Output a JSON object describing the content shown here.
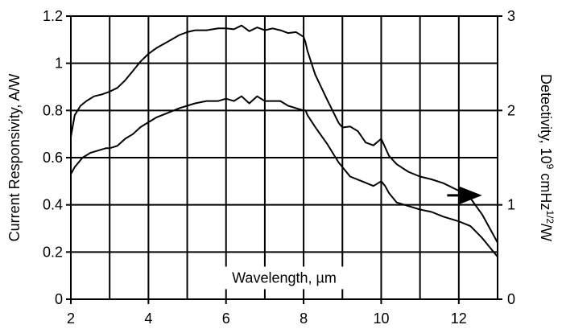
{
  "chart_data": {
    "type": "line",
    "title": "",
    "xlabel": "Wavelength, µm",
    "ylabel": "Current Responsivity, A/W",
    "y2label_base": "Detectivity, 10",
    "y2label_exp1": "9",
    "y2label_mid": " cmHz",
    "y2label_exp2": "1/2",
    "y2label_end": "/W",
    "xlim": [
      2,
      13
    ],
    "ylim": [
      0,
      1.2
    ],
    "y2lim": [
      0,
      3
    ],
    "grid": true,
    "x_ticks": [
      "2",
      "4",
      "6",
      "8",
      "10",
      "12"
    ],
    "y_ticks": [
      "0",
      "0.2",
      "0.4",
      "0.6",
      "0.8",
      "1",
      "1.2"
    ],
    "y2_ticks": [
      "0",
      "1",
      "2",
      "3"
    ],
    "arrow_annotation": {
      "direction": "right",
      "x_from": 11.7,
      "x_to": 12.6,
      "y": 0.44
    },
    "series": [
      {
        "axis": "y2",
        "color": "#000000",
        "x": [
          2.0,
          2.1,
          2.25,
          2.4,
          2.6,
          2.8,
          3.0,
          3.2,
          3.4,
          3.6,
          3.8,
          4.0,
          4.2,
          4.5,
          4.8,
          5.0,
          5.2,
          5.5,
          5.8,
          6.0,
          6.2,
          6.4,
          6.6,
          6.8,
          7.0,
          7.2,
          7.4,
          7.6,
          7.8,
          8.0,
          8.05,
          8.1,
          8.3,
          8.6,
          8.9,
          9.0,
          9.2,
          9.4,
          9.6,
          9.8,
          10.0,
          10.2,
          10.4,
          10.7,
          11.0,
          11.3,
          11.6,
          12.0,
          12.3,
          12.6,
          13.0
        ],
        "y": [
          1.72,
          1.95,
          2.05,
          2.1,
          2.15,
          2.17,
          2.2,
          2.24,
          2.32,
          2.42,
          2.52,
          2.6,
          2.66,
          2.73,
          2.8,
          2.83,
          2.85,
          2.85,
          2.87,
          2.87,
          2.86,
          2.9,
          2.84,
          2.88,
          2.85,
          2.87,
          2.85,
          2.82,
          2.83,
          2.78,
          2.72,
          2.63,
          2.38,
          2.12,
          1.87,
          1.82,
          1.83,
          1.78,
          1.66,
          1.63,
          1.7,
          1.52,
          1.43,
          1.35,
          1.3,
          1.27,
          1.23,
          1.15,
          1.07,
          0.9,
          0.6
        ]
      },
      {
        "axis": "y",
        "color": "#000000",
        "x": [
          2.0,
          2.1,
          2.3,
          2.5,
          2.7,
          2.9,
          3.0,
          3.2,
          3.4,
          3.6,
          3.8,
          4.0,
          4.2,
          4.5,
          4.8,
          5.0,
          5.2,
          5.5,
          5.8,
          6.0,
          6.2,
          6.4,
          6.6,
          6.8,
          7.0,
          7.2,
          7.4,
          7.6,
          7.8,
          8.0,
          8.05,
          8.1,
          8.3,
          8.6,
          8.9,
          9.2,
          9.5,
          9.8,
          10.0,
          10.1,
          10.2,
          10.4,
          10.6,
          10.8,
          11.0,
          11.3,
          11.6,
          12.0,
          12.3,
          12.6,
          13.0
        ],
        "y": [
          0.53,
          0.56,
          0.6,
          0.62,
          0.63,
          0.64,
          0.64,
          0.65,
          0.68,
          0.7,
          0.73,
          0.75,
          0.77,
          0.79,
          0.81,
          0.82,
          0.83,
          0.84,
          0.84,
          0.85,
          0.84,
          0.86,
          0.83,
          0.86,
          0.84,
          0.84,
          0.84,
          0.82,
          0.81,
          0.8,
          0.8,
          0.78,
          0.73,
          0.66,
          0.58,
          0.52,
          0.5,
          0.48,
          0.5,
          0.48,
          0.45,
          0.41,
          0.4,
          0.39,
          0.38,
          0.37,
          0.35,
          0.33,
          0.31,
          0.26,
          0.18
        ]
      }
    ]
  }
}
